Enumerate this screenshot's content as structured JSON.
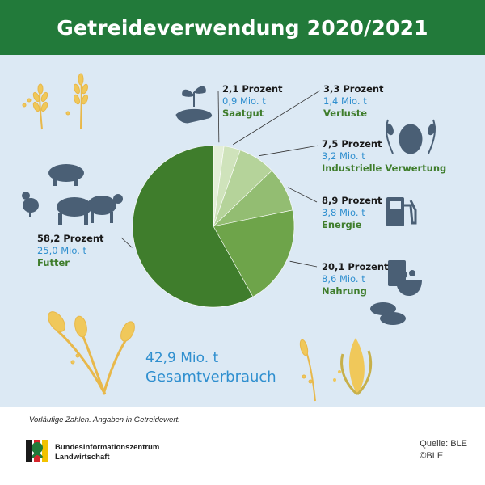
{
  "header": {
    "title": "Getreideverwendung 2020/2021"
  },
  "chart_data": {
    "type": "pie",
    "title": "Getreideverwendung 2020/2021",
    "total_text": "42,9 Mio. t",
    "total_label": "Gesamtverbrauch",
    "slices": [
      {
        "category": "Saatgut",
        "percent": 2.1,
        "percent_label": "2,1 Prozent",
        "amount_label": "0,9 Mio. t",
        "amount": 0.9,
        "color": "#e4efd8"
      },
      {
        "category": "Verluste",
        "percent": 3.3,
        "percent_label": "3,3 Prozent",
        "amount_label": "1,4 Mio. t",
        "amount": 1.4,
        "color": "#cfe3bb"
      },
      {
        "category": "Industrielle Verwertung",
        "percent": 7.5,
        "percent_label": "7,5 Prozent",
        "amount_label": "3,2 Mio. t",
        "amount": 3.2,
        "color": "#b5d39a"
      },
      {
        "category": "Energie",
        "percent": 8.9,
        "percent_label": "8,9 Prozent",
        "amount_label": "3,8 Mio. t",
        "amount": 3.8,
        "color": "#93bd72"
      },
      {
        "category": "Nahrung",
        "percent": 20.1,
        "percent_label": "20,1 Prozent",
        "amount_label": "8,6 Mio. t",
        "amount": 8.6,
        "color": "#6ea44a"
      },
      {
        "category": "Futter",
        "percent": 58.2,
        "percent_label": "58,2 Prozent",
        "amount_label": "25,0 Mio. t",
        "amount": 25.0,
        "color": "#3f7d2c"
      }
    ]
  },
  "footer": {
    "note": "Vorläufige Zahlen. Angaben in Getreidewert.",
    "org_line1": "Bundesinformationszentrum",
    "org_line2": "Landwirtschaft",
    "source": "Quelle: BLE",
    "copyright": "©BLE"
  },
  "colors": {
    "header": "#227a3a",
    "panel": "#dce9f4",
    "accent_blue": "#2f8fcf",
    "category_green": "#3f7d2c",
    "icon_slate": "#4a5f75",
    "grain_gold": "#f0c85a"
  },
  "icons": [
    "seedling-hand-icon",
    "hops-wheat-icon",
    "fuel-pump-icon",
    "cereal-bowl-icon",
    "bread-icon",
    "livestock-icon",
    "wheat-icon",
    "corn-icon"
  ]
}
